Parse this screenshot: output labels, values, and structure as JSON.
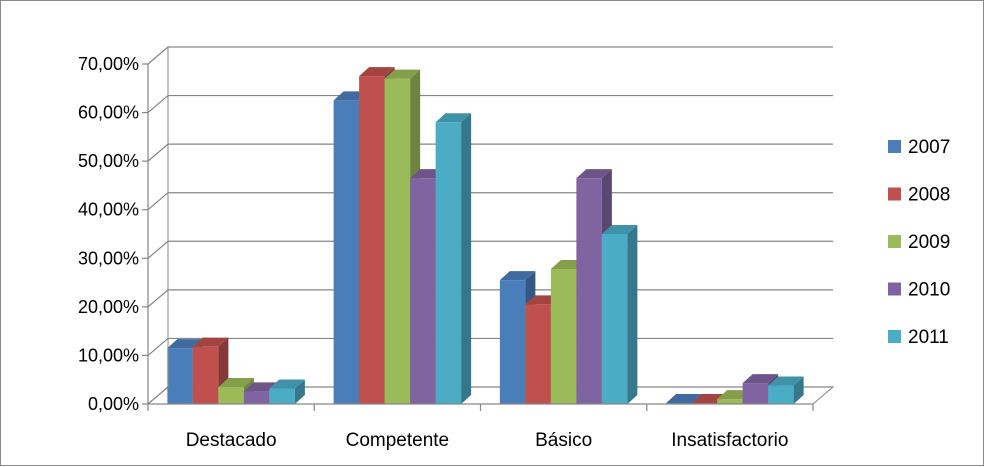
{
  "chart_data": {
    "type": "bar",
    "style": "3d-clustered-column",
    "categories": [
      "Destacado",
      "Competente",
      "Básico",
      "Insatisfactorio"
    ],
    "series": [
      {
        "name": "2007",
        "color": "#4a7ebb",
        "values": [
          11.5,
          62.5,
          25.5,
          0.2
        ]
      },
      {
        "name": "2008",
        "color": "#c0504d",
        "values": [
          11.8,
          67.5,
          20.5,
          0.2
        ]
      },
      {
        "name": "2009",
        "color": "#9bbb59",
        "values": [
          3.5,
          67.0,
          27.8,
          1.0
        ]
      },
      {
        "name": "2010",
        "color": "#8064a2",
        "values": [
          2.6,
          46.5,
          46.5,
          4.3
        ]
      },
      {
        "name": "2011",
        "color": "#4bacc6",
        "values": [
          3.2,
          58.0,
          35.0,
          3.8
        ]
      }
    ],
    "y_ticks": [
      "0,00%",
      "10,00%",
      "20,00%",
      "30,00%",
      "40,00%",
      "50,00%",
      "60,00%",
      "70,00%"
    ],
    "ylim": [
      0,
      70
    ],
    "grid": true,
    "legend_position": "right"
  }
}
